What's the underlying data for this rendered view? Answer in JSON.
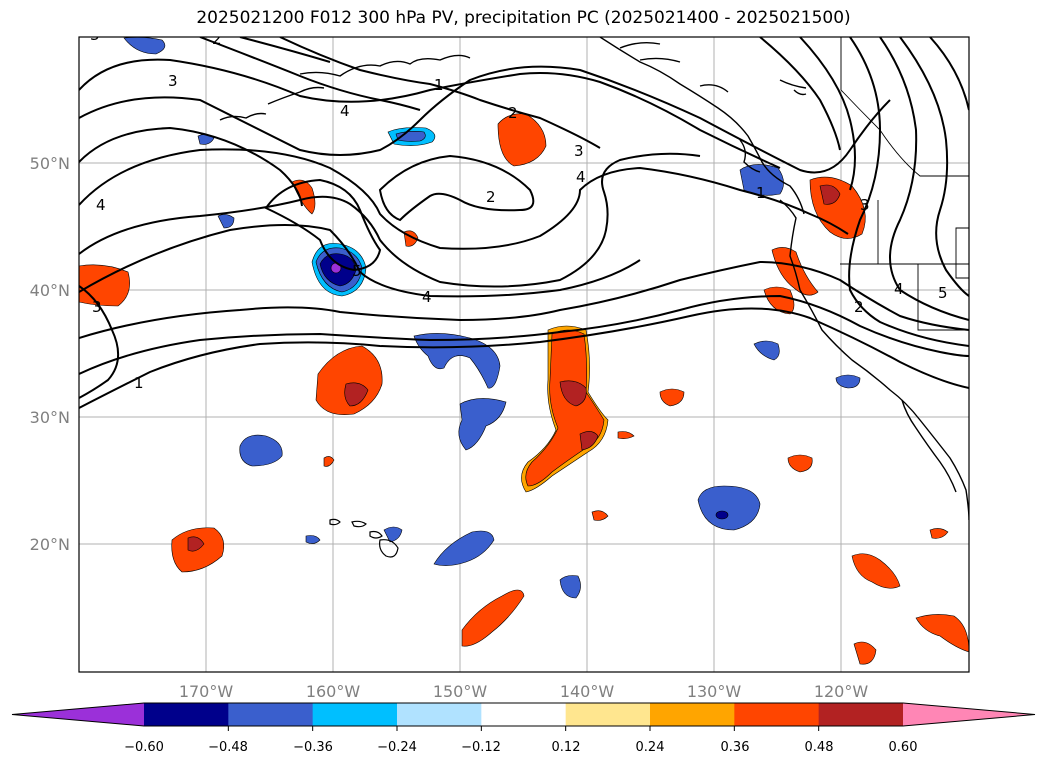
{
  "title": "2025021200 F012 300 hPa PV, precipitation PC (2025021400 - 2025021500)",
  "map": {
    "lon_labels": [
      "170°W",
      "160°W",
      "150°W",
      "140°W",
      "130°W",
      "120°W"
    ],
    "lat_labels": [
      "50°N",
      "40°N",
      "30°N",
      "20°N"
    ],
    "contour_labels": [
      "3",
      "1",
      "3",
      "4",
      "2",
      "3",
      "4",
      "2",
      "4",
      "4",
      "5",
      "3",
      "1",
      "1",
      "2",
      "3",
      "4",
      "5",
      "2"
    ]
  },
  "colorbar": {
    "ticks": [
      "−0.60",
      "−0.48",
      "−0.36",
      "−0.24",
      "−0.12",
      "0.12",
      "0.24",
      "0.36",
      "0.48",
      "0.60"
    ],
    "colors": [
      "#9b30d9",
      "#00008b",
      "#3a5fcd",
      "#00bfff",
      "#b0e2ff",
      "#ffffff",
      "#ffe68f",
      "#ffa500",
      "#ff4500",
      "#b22222",
      "#ff86b5"
    ]
  }
}
